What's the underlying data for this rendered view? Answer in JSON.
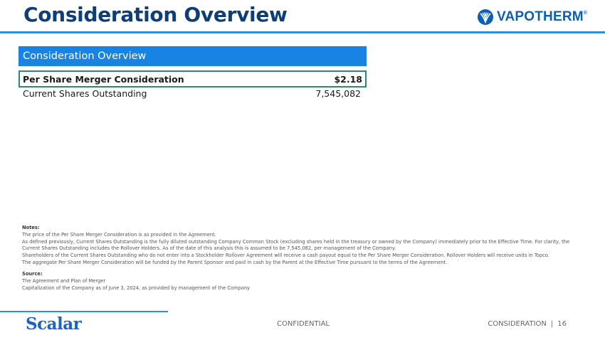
{
  "page": {
    "title": "Consideration Overview"
  },
  "logo": {
    "text": "VAPOTHERM",
    "mark": "®"
  },
  "table": {
    "header": "Consideration Overview",
    "rows": [
      {
        "label": "Per Share Merger Consideration",
        "value": "$2.18",
        "highlighted": true
      },
      {
        "label": "Current Shares Outstanding",
        "value": "7,545,082",
        "highlighted": false
      }
    ]
  },
  "notes": {
    "heading": "Notes:",
    "items": [
      "The price of the Per Share Merger Consideration is as provided in the Agreement.",
      "As defined previously, Current Shares Outstanding is the fully diluted outstanding Company Common Stock (excluding shares held in the treasury or owned by the Company) immediately prior to the Effective Time. For clarity, the Current Shares Outstanding includes the Rollover Holders. As of the date of this analysis this is assumed to be 7,545,082, per management of the Company.",
      "Shareholders of the Current Shares Outstanding who do not enter into a Stockholder Rollover Agreement will receive a cash payout equal to the Per Share Merger Consideration. Rollover Holders will receive units in Topco.",
      "The aggregate Per Share Merger Consideration will be funded by the Parent Sponsor and paid in cash by the Parent at the Effective Time pursuant to the terms of the Agreement."
    ]
  },
  "source": {
    "heading": "Source:",
    "items": [
      "The Agreement and Plan of Merger",
      "Capitalization of the Company as of June 3, 2024, as provided by management of the Company"
    ]
  },
  "footer": {
    "brand": "Scalar",
    "confidential": "CONFIDENTIAL",
    "section": "CONSIDERATION",
    "separator": "|",
    "page_number": "16"
  },
  "colors": {
    "title": "#0d3e78",
    "accent": "#1883e2",
    "rule": "#2d8fd8",
    "highlight_border": "#2c8a6e",
    "logo": "#0b5fb5"
  }
}
